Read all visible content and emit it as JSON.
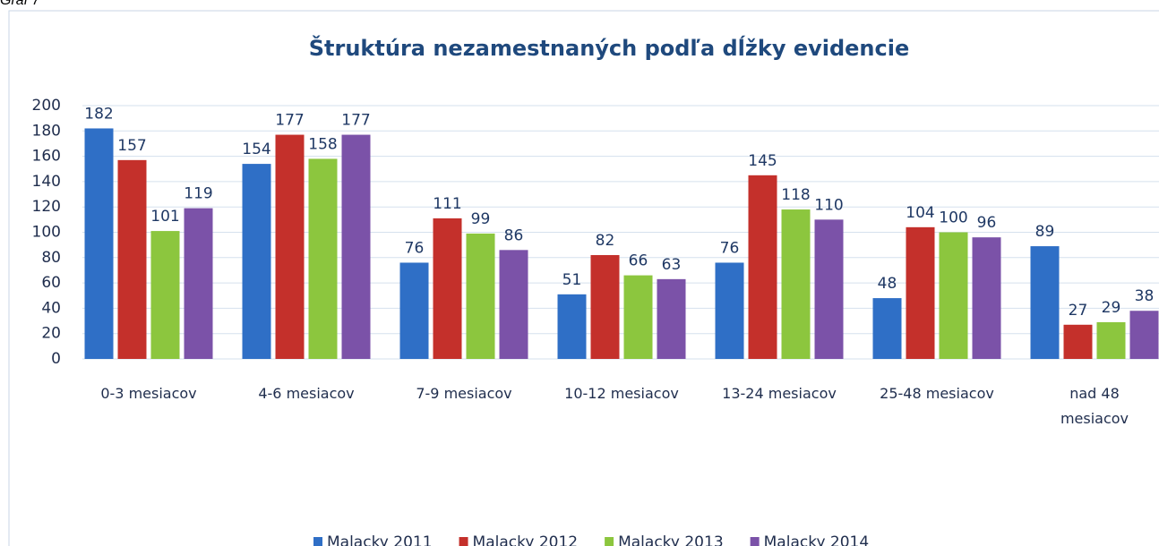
{
  "caption": "Graf 7",
  "chart_data": {
    "type": "bar",
    "title": "Štruktúra nezamestnaných podľa dĺžky evidencie",
    "categories": [
      "0-3 mesiacov",
      "4-6 mesiacov",
      "7-9 mesiacov",
      "10-12 mesiacov",
      "13-24 mesiacov",
      "25-48 mesiacov",
      "nad 48 mesiacov"
    ],
    "series": [
      {
        "name": "Malacky 2011",
        "color": "#2f6fc6",
        "values": [
          182,
          154,
          76,
          51,
          76,
          48,
          89
        ]
      },
      {
        "name": "Malacky 2012",
        "color": "#c4302b",
        "values": [
          157,
          177,
          111,
          82,
          145,
          104,
          27
        ]
      },
      {
        "name": "Malacky 2013",
        "color": "#8cc63e",
        "values": [
          101,
          158,
          99,
          66,
          118,
          100,
          29
        ]
      },
      {
        "name": "Malacky 2014",
        "color": "#7b52a8",
        "values": [
          119,
          177,
          86,
          63,
          110,
          96,
          38
        ]
      }
    ],
    "ylim": [
      0,
      200
    ],
    "yticks": [
      0,
      20,
      40,
      60,
      80,
      100,
      120,
      140,
      160,
      180,
      200
    ],
    "grid": true,
    "legend": "bottom"
  }
}
